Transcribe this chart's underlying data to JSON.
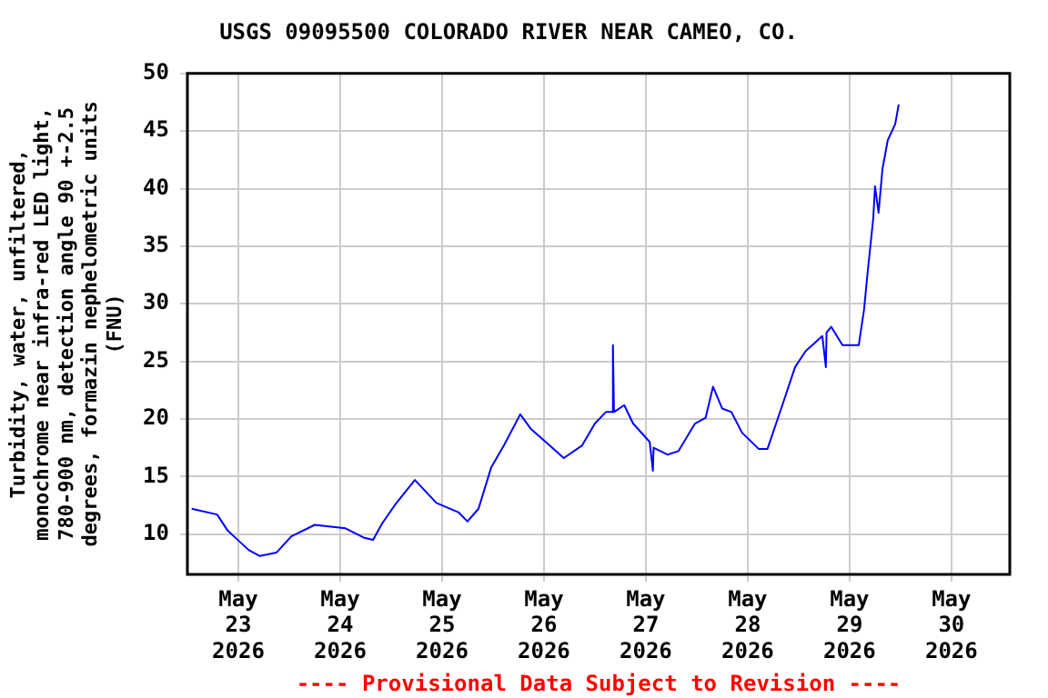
{
  "chart_data": {
    "type": "line",
    "title": "USGS 09095500 COLORADO RIVER NEAR CAMEO, CO.",
    "ylabel": "Turbidity, water, unfiltered,\nmonochrome near infra-red LED light,\n780-900 nm, detection angle 90 +-2.5\ndegrees, formazin nephelometric units\n(FNU)",
    "annotations": [
      "---- Provisional Data Subject to Revision ----"
    ],
    "x": [
      "2026-05-22T13:00",
      "2026-05-22T19:00",
      "2026-05-22T21:30",
      "2026-05-23T02:30",
      "2026-05-23T05:00",
      "2026-05-23T09:00",
      "2026-05-23T12:30",
      "2026-05-23T18:00",
      "2026-05-24T01:15",
      "2026-05-24T05:30",
      "2026-05-24T07:45",
      "2026-05-24T09:50",
      "2026-05-24T12:50",
      "2026-05-24T17:35",
      "2026-05-24T22:40",
      "2026-05-25T03:50",
      "2026-05-25T06:00",
      "2026-05-25T08:35",
      "2026-05-25T11:35",
      "2026-05-25T14:35",
      "2026-05-25T18:25",
      "2026-05-25T21:00",
      "2026-05-26T00:25",
      "2026-05-26T04:40",
      "2026-05-26T09:00",
      "2026-05-26T12:00",
      "2026-05-26T14:35",
      "2026-05-26T16:10",
      "2026-05-26T16:15",
      "2026-05-26T16:30",
      "2026-05-26T18:55",
      "2026-05-26T21:00",
      "2026-05-27T00:55",
      "2026-05-27T01:40",
      "2026-05-27T01:50",
      "2026-05-27T05:05",
      "2026-05-27T07:40",
      "2026-05-27T11:35",
      "2026-05-27T14:05",
      "2026-05-27T15:50",
      "2026-05-27T18:00",
      "2026-05-27T20:10",
      "2026-05-27T22:40",
      "2026-05-28T02:35",
      "2026-05-28T04:40",
      "2026-05-28T08:10",
      "2026-05-28T11:10",
      "2026-05-28T13:40",
      "2026-05-28T17:35",
      "2026-05-28T18:25",
      "2026-05-28T18:35",
      "2026-05-28T19:40",
      "2026-05-28T22:20",
      "2026-05-29T02:10",
      "2026-05-29T03:25",
      "2026-05-29T04:15",
      "2026-05-29T05:35",
      "2026-05-29T06:00",
      "2026-05-29T06:50",
      "2026-05-29T07:45",
      "2026-05-29T09:00",
      "2026-05-29T10:45",
      "2026-05-29T11:35"
    ],
    "series": [
      {
        "color": "#0000ff",
        "values": [
          12.2,
          11.7,
          10.3,
          8.6,
          8.1,
          8.4,
          9.8,
          10.8,
          10.5,
          9.7,
          9.5,
          10.9,
          12.5,
          14.7,
          12.7,
          11.9,
          11.1,
          12.2,
          15.8,
          17.7,
          20.4,
          19.1,
          18.0,
          16.6,
          17.7,
          19.6,
          20.6,
          20.6,
          26.4,
          20.6,
          21.2,
          19.6,
          18.0,
          15.5,
          17.5,
          16.9,
          17.2,
          19.6,
          20.1,
          22.8,
          20.9,
          20.6,
          18.8,
          17.4,
          17.4,
          21.2,
          24.5,
          25.9,
          27.2,
          24.5,
          27.5,
          28.0,
          26.4,
          26.4,
          29.5,
          32.7,
          37.4,
          40.2,
          37.9,
          41.7,
          44.2,
          45.6,
          47.3
        ]
      }
    ],
    "xlim": [
      "2026-05-22T12:00",
      "2026-05-30T13:45"
    ],
    "xticks": [
      {
        "value": "2026-05-23",
        "label": "May 23 2026"
      },
      {
        "value": "2026-05-24",
        "label": "May 24 2026"
      },
      {
        "value": "2026-05-25",
        "label": "May 25 2026"
      },
      {
        "value": "2026-05-26",
        "label": "May 26 2026"
      },
      {
        "value": "2026-05-27",
        "label": "May 27 2026"
      },
      {
        "value": "2026-05-28",
        "label": "May 28 2026"
      },
      {
        "value": "2026-05-29",
        "label": "May 29 2026"
      },
      {
        "value": "2026-05-30",
        "label": "May 30 2026"
      }
    ],
    "ylim": [
      6.5,
      50
    ],
    "yticks": [
      10,
      15,
      20,
      25,
      30,
      35,
      40,
      45,
      50
    ],
    "grid": true,
    "legend": false,
    "marker": "none",
    "line_style": "solid"
  }
}
